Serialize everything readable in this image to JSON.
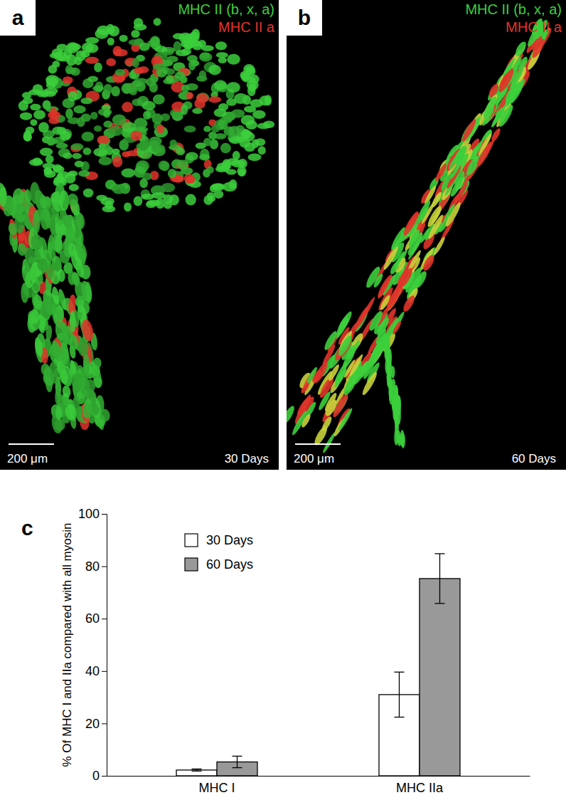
{
  "image_panels": [
    {
      "label": "a",
      "channels": [
        {
          "name": "MHC II (b, x, a)",
          "color": "#3ccf3c"
        },
        {
          "name": "MHC II a",
          "color": "#e0342a"
        }
      ],
      "scale_bar": "200 μm",
      "time_label": "30 Days"
    },
    {
      "label": "b",
      "channels": [
        {
          "name": "MHC II (b, x, a)",
          "color": "#3ccf3c"
        },
        {
          "name": "MHC II a",
          "color": "#e0342a"
        }
      ],
      "scale_bar": "200 μm",
      "time_label": "60 Days"
    }
  ],
  "chart_data": {
    "type": "bar",
    "panel_label": "c",
    "ylabel": "% Of MHC I and IIa compared with all myosin",
    "categories": [
      "MHC I",
      "MHC IIa"
    ],
    "series": [
      {
        "name": "30 Days",
        "color": "#ffffff",
        "values": [
          2.2,
          31
        ],
        "errors": [
          0.4,
          8.6
        ]
      },
      {
        "name": "60 Days",
        "color": "#999999",
        "values": [
          5.3,
          75.3
        ],
        "errors": [
          2.2,
          9.5
        ]
      }
    ],
    "ylim": [
      0,
      100
    ],
    "yticks": [
      0,
      20,
      40,
      60,
      80,
      100
    ],
    "legend": "upper left"
  }
}
